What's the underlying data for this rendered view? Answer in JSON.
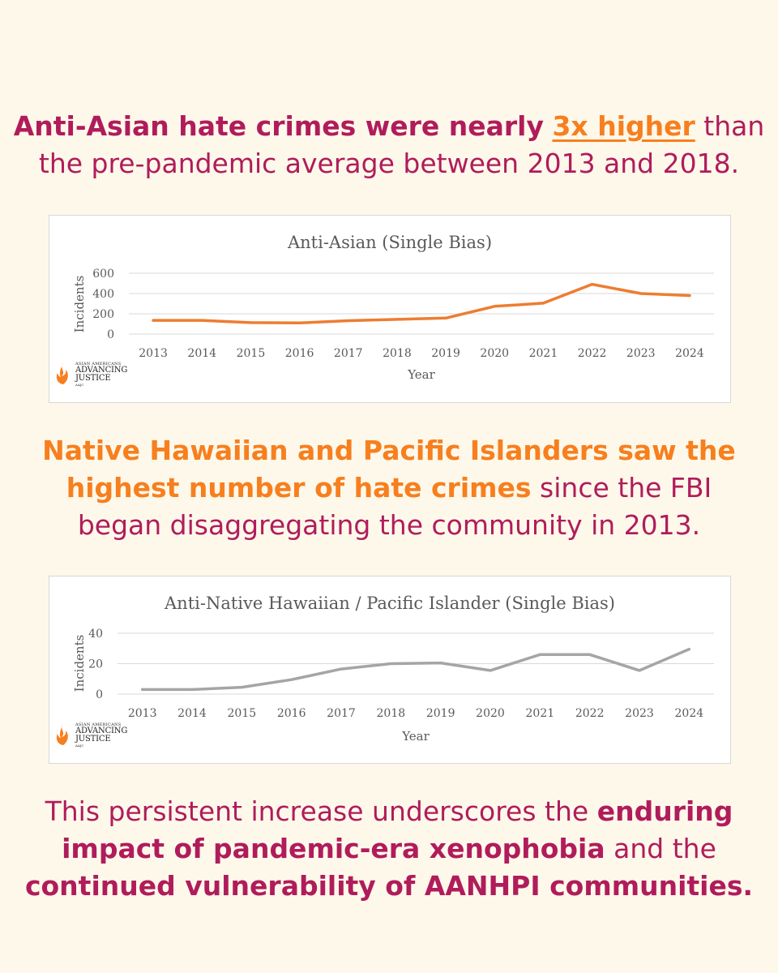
{
  "headline1": {
    "bold_lead": "Anti-Asian hate crimes were nearly",
    "highlight": "3x higher",
    "rest_line1": "than",
    "line2": "the pre-pandemic average between 2013 and 2018."
  },
  "headline2": {
    "orange_line1": "Native Hawaiian and Pacific Islanders saw the",
    "orange_line2": "highest number of hate crimes",
    "rest_line2": "since the FBI",
    "line3": "began disaggregating the community in 2013."
  },
  "headline3": {
    "line1_plain": "This persistent increase underscores the",
    "line1_bold": "enduring",
    "line2_bold": "impact of pandemic-era xenophobia",
    "line2_plain": "and the",
    "line3_bold": "continued vulnerability of AANHPI communities."
  },
  "logo": {
    "small": "ASIAN AMERICANS",
    "big1": "ADVANCING",
    "big2": "JUSTICE",
    "tiny": "AAJC"
  },
  "colors": {
    "accent_magenta": "#b01c5b",
    "accent_orange": "#f77f1e",
    "series1": "#ed7d31",
    "series2": "#a5a5a5"
  },
  "chart_data": [
    {
      "type": "line",
      "title": "Anti-Asian (Single Bias)",
      "xlabel": "Year",
      "ylabel": "Incidents",
      "categories": [
        "2013",
        "2014",
        "2015",
        "2016",
        "2017",
        "2018",
        "2019",
        "2020",
        "2021",
        "2022",
        "2023",
        "2024"
      ],
      "values": [
        135,
        135,
        113,
        110,
        132,
        145,
        158,
        274,
        305,
        491,
        400,
        380
      ],
      "yticks": [
        0,
        200,
        400,
        600
      ],
      "ylim": [
        0,
        600
      ],
      "color": "#ed7d31"
    },
    {
      "type": "line",
      "title": "Anti-Native Hawaiian / Pacific Islander (Single Bias)",
      "xlabel": "Year",
      "ylabel": "Incidents",
      "categories": [
        "2013",
        "2014",
        "2015",
        "2016",
        "2017",
        "2018",
        "2019",
        "2020",
        "2021",
        "2022",
        "2023",
        "2024"
      ],
      "values": [
        3,
        3,
        4.5,
        9.5,
        16.5,
        20,
        20.5,
        15.5,
        26,
        26,
        15.5,
        29.5
      ],
      "yticks": [
        0,
        20,
        40
      ],
      "ylim": [
        0,
        40
      ],
      "color": "#a5a5a5"
    }
  ]
}
